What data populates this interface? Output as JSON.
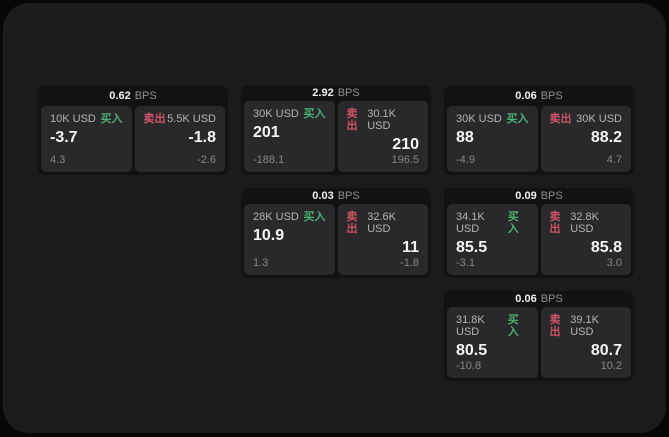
{
  "colors": {
    "page_bg": "#070708",
    "container_bg": "#1b1b1d",
    "card_bg": "#121214",
    "panel_bg": "#29292b",
    "text_primary": "#f5f5f6",
    "text_secondary": "#b4b4b7",
    "text_muted": "#87878b",
    "buy_green": "#4caf72",
    "sell_red": "#cf5268"
  },
  "labels": {
    "bps_unit": "BPS",
    "buy": "买入",
    "sell": "卖出"
  },
  "cards": [
    {
      "bps": "0.62",
      "buy": {
        "amount": "10K USD",
        "value": "-3.7",
        "sub": "4.3"
      },
      "sell": {
        "amount": "5.5K USD",
        "value": "-1.8",
        "sub": "-2.6"
      }
    },
    {
      "bps": "2.92",
      "buy": {
        "amount": "30K USD",
        "value": "201",
        "sub": "-188.1"
      },
      "sell": {
        "amount": "30.1K USD",
        "value": "210",
        "sub": "196.5"
      }
    },
    {
      "bps": "0.06",
      "buy": {
        "amount": "30K USD",
        "value": "88",
        "sub": "-4.9"
      },
      "sell": {
        "amount": "30K USD",
        "value": "88.2",
        "sub": "4.7"
      }
    },
    {
      "bps": "0.03",
      "buy": {
        "amount": "28K USD",
        "value": "10.9",
        "sub": "1.3"
      },
      "sell": {
        "amount": "32.6K USD",
        "value": "11",
        "sub": "-1.8"
      }
    },
    {
      "bps": "0.09",
      "buy": {
        "amount": "34.1K USD",
        "value": "85.5",
        "sub": "-3.1"
      },
      "sell": {
        "amount": "32.8K USD",
        "value": "85.8",
        "sub": "3.0"
      }
    },
    {
      "bps": "0.06",
      "buy": {
        "amount": "31.8K USD",
        "value": "80.5",
        "sub": "-10.8"
      },
      "sell": {
        "amount": "39.1K USD",
        "value": "80.7",
        "sub": "10.2"
      }
    }
  ]
}
